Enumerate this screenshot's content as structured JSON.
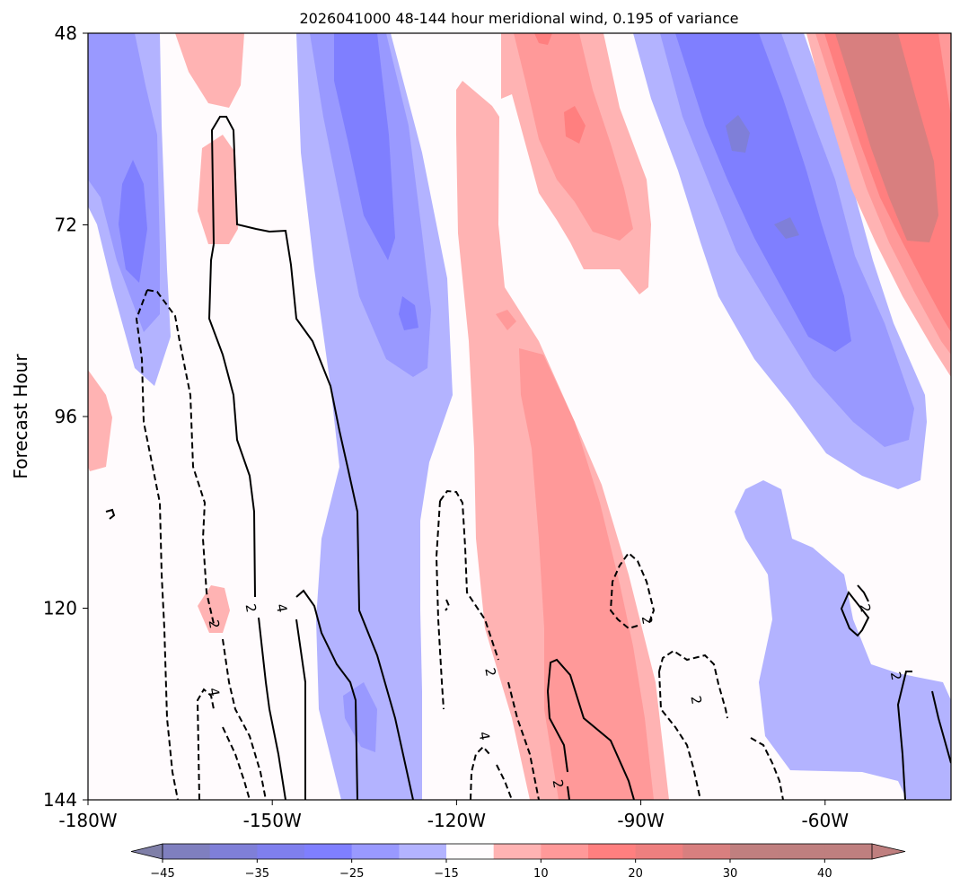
{
  "chart_data": {
    "type": "contour",
    "title": "2026041000 48-144 hour meridional wind, 0.195 of variance",
    "ylabel": "Forecast Hour",
    "xlabel": "",
    "x_ticks": [
      {
        "value": -180,
        "label": "-180W"
      },
      {
        "value": -150,
        "label": "-150W"
      },
      {
        "value": -120,
        "label": "-120W"
      },
      {
        "value": -90,
        "label": "-90W"
      },
      {
        "value": -60,
        "label": "-60W"
      }
    ],
    "y_ticks": [
      {
        "value": 48,
        "label": "48"
      },
      {
        "value": 72,
        "label": "72"
      },
      {
        "value": 96,
        "label": "96"
      },
      {
        "value": 120,
        "label": "120"
      },
      {
        "value": 144,
        "label": "144"
      }
    ],
    "xlim": [
      -180,
      -39.5
    ],
    "ylim": [
      48,
      144
    ],
    "y_inverted": true,
    "colorbar": {
      "levels": [
        -45,
        -40,
        -35,
        -30,
        -25,
        -20,
        -15,
        -10,
        10,
        15,
        20,
        25,
        30,
        35,
        40,
        45
      ],
      "tick_labels": [
        "−45",
        "−35",
        "−25",
        "−15",
        "10",
        "20",
        "30",
        "40"
      ],
      "tick_values": [
        -45,
        -35,
        -25,
        -15,
        10,
        20,
        30,
        40
      ],
      "colors": [
        "#7f7fbf",
        "#7f7fd8",
        "#7f7fee",
        "#7f7fff",
        "#9999ff",
        "#b3b3ff",
        "#fffbfd",
        "#ffb3b3",
        "#ff9999",
        "#ff7f7f",
        "#ee7f7f",
        "#d87f7f",
        "#c07f7f",
        "#bf7f7f"
      ],
      "extend": "both"
    },
    "filled_bands": [
      {
        "level": "-15 to -10",
        "color": "#b3b3ff"
      },
      {
        "level": "-20 to -15",
        "color": "#9999ff"
      },
      {
        "level": "-25 to -20",
        "color": "#7f7fff"
      },
      {
        "level": "-30 to -25",
        "color": "#7f7fd8"
      },
      {
        "level": "10 to 15",
        "color": "#ffb3b3"
      },
      {
        "level": "15 to 20",
        "color": "#ff9999"
      },
      {
        "level": "20 to 25",
        "color": "#ff7f7f"
      },
      {
        "level": "25 to 30",
        "color": "#d87f7f"
      }
    ],
    "line_contours": [
      {
        "value": 2,
        "style": "solid"
      },
      {
        "value": 4,
        "style": "solid"
      },
      {
        "value": -2,
        "style": "dashed"
      },
      {
        "value": -4,
        "style": "dashed"
      }
    ],
    "contour_labels": [
      {
        "text": "2",
        "lon": -153.5,
        "hour": 120
      },
      {
        "text": "4",
        "lon": -148.5,
        "hour": 120
      },
      {
        "text": "2",
        "lon": -159.5,
        "hour": 122
      },
      {
        "text": "4",
        "lon": -159.5,
        "hour": 130.5
      },
      {
        "text": "2",
        "lon": -114.5,
        "hour": 128
      },
      {
        "text": "4",
        "lon": -115.5,
        "hour": 136
      },
      {
        "text": "2",
        "lon": -103.5,
        "hour": 142
      },
      {
        "text": "2",
        "lon": -89,
        "hour": 121.5
      },
      {
        "text": "2",
        "lon": -81,
        "hour": 131.5
      },
      {
        "text": "2",
        "lon": -53.5,
        "hour": 120
      },
      {
        "text": "2",
        "lon": -48.5,
        "hour": 128.5
      }
    ]
  }
}
